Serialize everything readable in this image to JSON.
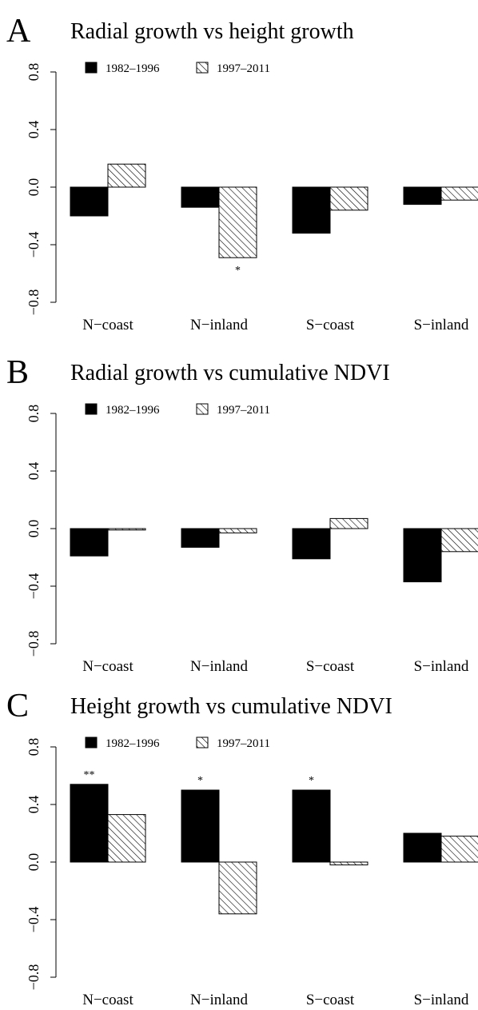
{
  "chart_data": [
    {
      "type": "bar",
      "panel": "A",
      "title": "Radial growth vs height growth",
      "categories": [
        "N−coast",
        "N−inland",
        "S−coast",
        "S−inland"
      ],
      "series": [
        {
          "name": "1982–1996",
          "color": "#000000",
          "pattern": "solid",
          "values": [
            -0.2,
            -0.14,
            -0.32,
            -0.12
          ],
          "annotations": [
            null,
            null,
            null,
            null
          ]
        },
        {
          "name": "1997–2011",
          "color": "#000000",
          "pattern": "hatch",
          "values": [
            0.16,
            -0.49,
            -0.16,
            -0.09
          ],
          "annotations": [
            null,
            "*",
            null,
            null
          ]
        }
      ],
      "ylim": [
        -0.8,
        0.8
      ],
      "yticks": [
        {
          "value": -0.8,
          "label": "−0.8"
        },
        {
          "value": -0.4,
          "label": "−0.4"
        },
        {
          "value": 0,
          "label": "0.0"
        },
        0.4,
        0.8
      ]
    },
    {
      "type": "bar",
      "panel": "B",
      "title": "Radial growth vs cumulative NDVI",
      "categories": [
        "N−coast",
        "N−inland",
        "S−coast",
        "S−inland"
      ],
      "series": [
        {
          "name": "1982–1996",
          "color": "#000000",
          "pattern": "solid",
          "values": [
            -0.19,
            -0.13,
            -0.21,
            -0.37
          ],
          "annotations": [
            null,
            null,
            null,
            null
          ]
        },
        {
          "name": "1997–2011",
          "color": "#000000",
          "pattern": "hatch",
          "values": [
            -0.01,
            -0.03,
            0.07,
            -0.16
          ],
          "annotations": [
            null,
            null,
            null,
            null
          ]
        }
      ],
      "ylim": [
        -0.8,
        0.8
      ],
      "yticks": [
        {
          "value": -0.8,
          "label": "−0.8"
        },
        {
          "value": -0.4,
          "label": "−0.4"
        },
        {
          "value": 0,
          "label": "0.0"
        },
        0.4,
        0.8
      ]
    },
    {
      "type": "bar",
      "panel": "C",
      "title": "Height growth vs cumulative NDVI",
      "categories": [
        "N−coast",
        "N−inland",
        "S−coast",
        "S−inland"
      ],
      "series": [
        {
          "name": "1982–1996",
          "color": "#000000",
          "pattern": "solid",
          "values": [
            0.54,
            0.5,
            0.5,
            0.2
          ],
          "annotations": [
            "**",
            "*",
            "*",
            null
          ]
        },
        {
          "name": "1997–2011",
          "color": "#000000",
          "pattern": "hatch",
          "values": [
            0.33,
            -0.36,
            -0.02,
            0.18
          ],
          "annotations": [
            null,
            null,
            null,
            null
          ]
        }
      ],
      "ylim": [
        -0.8,
        0.8
      ],
      "yticks": [
        {
          "value": -0.8,
          "label": "−0.8"
        },
        {
          "value": -0.4,
          "label": "−0.4"
        },
        {
          "value": 0,
          "label": "0.0"
        },
        0.4,
        0.8
      ]
    }
  ]
}
